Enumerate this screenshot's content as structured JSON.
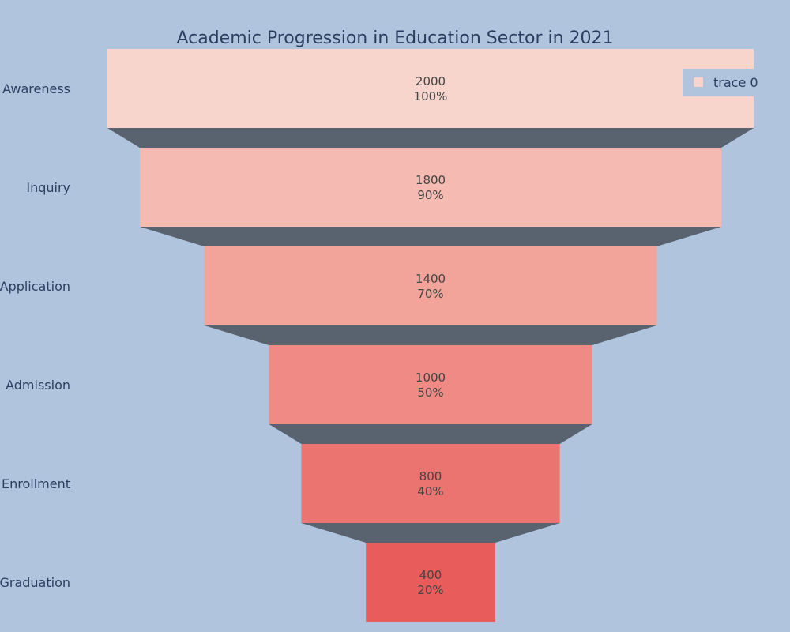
{
  "chart_data": {
    "type": "funnel",
    "title": "Academic Progression in Education Sector in 2021",
    "stages": [
      "Awareness",
      "Inquiry",
      "Application",
      "Admission",
      "Enrollment",
      "Graduation"
    ],
    "values": [
      2000,
      1800,
      1400,
      1000,
      800,
      400
    ],
    "percent_labels": [
      "100%",
      "90%",
      "70%",
      "50%",
      "40%",
      "20%"
    ],
    "colors": [
      "#f8d5cc",
      "#f5bbb2",
      "#f2a49b",
      "#ef8b84",
      "#ec7470",
      "#e85c5b"
    ],
    "connector_color": "#596370",
    "legend": {
      "entries": [
        "trace 0"
      ],
      "placement": "top-right"
    }
  }
}
